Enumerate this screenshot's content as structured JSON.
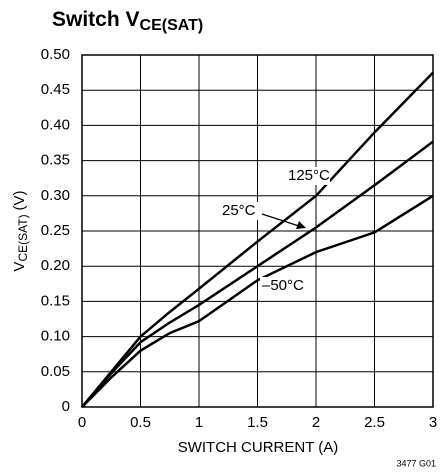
{
  "chart_data": {
    "type": "line",
    "title": {
      "text": "Switch V",
      "subscript": "CE(SAT)"
    },
    "xlabel": "SWITCH CURRENT (A)",
    "ylabel": {
      "text": "V",
      "subscript": "CE(SAT)",
      "suffix": "(V)"
    },
    "footnote": "3477 G01",
    "x": [
      0,
      0.25,
      0.5,
      0.75,
      1,
      1.5,
      2,
      2.5,
      3
    ],
    "series": [
      {
        "name": "125°C",
        "color": "#000000",
        "values": [
          0,
          0.05,
          0.1,
          0.135,
          0.168,
          0.235,
          0.3,
          0.39,
          0.475
        ]
      },
      {
        "name": "25°C",
        "color": "#000000",
        "values": [
          0,
          0.048,
          0.092,
          0.12,
          0.145,
          0.2,
          0.255,
          0.315,
          0.377
        ]
      },
      {
        "name": "–50°C",
        "color": "#000000",
        "values": [
          0,
          0.042,
          0.08,
          0.105,
          0.122,
          0.18,
          0.22,
          0.248,
          0.3
        ]
      }
    ],
    "xlim": [
      0,
      3
    ],
    "xticks": [
      0,
      0.5,
      1,
      1.5,
      2,
      2.5,
      3
    ],
    "ylim": [
      0,
      0.5
    ],
    "yticks": [
      0,
      0.05,
      {
        "value": 0.1,
        "label": "0.10"
      },
      0.15,
      {
        "value": 0.2,
        "label": "0.20"
      },
      0.25,
      {
        "value": 0.3,
        "label": "0.30"
      },
      0.35,
      {
        "value": 0.4,
        "label": "0.40"
      },
      0.45,
      {
        "value": 0.5,
        "label": "0.50"
      }
    ],
    "grid": true
  }
}
